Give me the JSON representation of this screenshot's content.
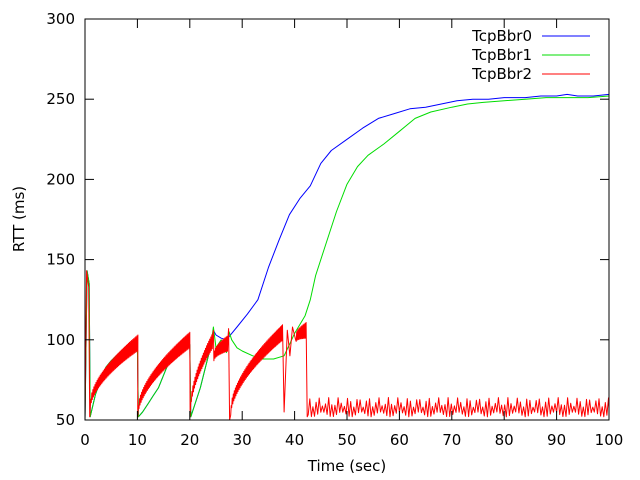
{
  "chart_data": {
    "type": "line",
    "xlabel": "Time (sec)",
    "ylabel": "RTT (ms)",
    "xlim": [
      0,
      100
    ],
    "ylim": [
      50,
      300
    ],
    "x_ticks": [
      0,
      10,
      20,
      30,
      40,
      50,
      60,
      70,
      80,
      90,
      100
    ],
    "y_ticks": [
      50,
      100,
      150,
      200,
      250,
      300
    ],
    "legend_position": "top-right",
    "grid": false,
    "series": [
      {
        "name": "TcpBbr0",
        "color": "#0000ff",
        "points": [
          [
            0,
            50
          ],
          [
            0.4,
            143
          ],
          [
            0.8,
            135
          ],
          [
            1.0,
            52
          ],
          [
            2,
            66
          ],
          [
            3,
            75
          ],
          [
            4,
            83
          ],
          [
            5,
            87
          ],
          [
            6,
            90
          ],
          [
            7,
            93
          ],
          [
            8,
            95
          ],
          [
            9,
            95
          ],
          [
            10,
            95
          ],
          [
            10.2,
            52
          ],
          [
            11,
            55
          ],
          [
            12,
            60
          ],
          [
            13,
            65
          ],
          [
            14,
            70
          ],
          [
            15,
            78
          ],
          [
            16,
            86
          ],
          [
            17,
            92
          ],
          [
            18,
            96
          ],
          [
            19,
            96
          ],
          [
            20,
            97
          ],
          [
            20.2,
            52
          ],
          [
            21,
            60
          ],
          [
            22,
            70
          ],
          [
            23,
            83
          ],
          [
            24,
            96
          ],
          [
            24.5,
            106
          ],
          [
            25,
            103
          ],
          [
            26,
            101
          ],
          [
            27,
            100
          ],
          [
            28,
            104
          ],
          [
            29,
            108
          ],
          [
            31,
            116
          ],
          [
            33,
            125
          ],
          [
            35,
            145
          ],
          [
            37,
            162
          ],
          [
            39,
            178
          ],
          [
            41,
            188
          ],
          [
            43,
            196
          ],
          [
            45,
            210
          ],
          [
            47,
            218
          ],
          [
            50,
            225
          ],
          [
            53,
            232
          ],
          [
            56,
            238
          ],
          [
            59,
            241
          ],
          [
            62,
            244
          ],
          [
            65,
            245
          ],
          [
            68,
            247
          ],
          [
            71,
            249
          ],
          [
            74,
            250
          ],
          [
            77,
            250
          ],
          [
            80,
            251
          ],
          [
            84,
            251
          ],
          [
            87,
            252
          ],
          [
            90,
            252
          ],
          [
            92,
            253
          ],
          [
            94,
            252
          ],
          [
            97,
            252
          ],
          [
            100,
            253
          ]
        ]
      },
      {
        "name": "TcpBbr1",
        "color": "#00dd00",
        "points": [
          [
            0,
            50
          ],
          [
            0.4,
            143
          ],
          [
            0.8,
            135
          ],
          [
            1.0,
            52
          ],
          [
            2,
            66
          ],
          [
            3,
            75
          ],
          [
            4,
            83
          ],
          [
            5,
            87
          ],
          [
            6,
            90
          ],
          [
            7,
            93
          ],
          [
            8,
            95
          ],
          [
            9,
            95
          ],
          [
            10,
            95
          ],
          [
            10.2,
            52
          ],
          [
            11,
            55
          ],
          [
            12,
            60
          ],
          [
            13,
            65
          ],
          [
            14,
            70
          ],
          [
            15,
            78
          ],
          [
            16,
            86
          ],
          [
            17,
            92
          ],
          [
            18,
            96
          ],
          [
            19,
            96
          ],
          [
            20,
            97
          ],
          [
            20.2,
            52
          ],
          [
            21,
            60
          ],
          [
            22,
            70
          ],
          [
            23,
            83
          ],
          [
            24,
            96
          ],
          [
            24.5,
            108
          ],
          [
            25,
            95
          ],
          [
            26,
            100
          ],
          [
            27,
            92
          ],
          [
            27.5,
            105
          ],
          [
            28,
            100
          ],
          [
            29,
            95
          ],
          [
            30,
            93
          ],
          [
            32,
            90
          ],
          [
            34,
            88
          ],
          [
            36,
            88
          ],
          [
            38,
            90
          ],
          [
            39,
            97
          ],
          [
            40,
            104
          ],
          [
            42,
            115
          ],
          [
            43,
            125
          ],
          [
            44,
            140
          ],
          [
            46,
            160
          ],
          [
            48,
            180
          ],
          [
            50,
            197
          ],
          [
            52,
            208
          ],
          [
            54,
            215
          ],
          [
            57,
            222
          ],
          [
            60,
            230
          ],
          [
            63,
            238
          ],
          [
            66,
            242
          ],
          [
            70,
            245
          ],
          [
            73,
            247
          ],
          [
            76,
            248
          ],
          [
            80,
            249
          ],
          [
            84,
            250
          ],
          [
            88,
            251
          ],
          [
            92,
            251
          ],
          [
            96,
            251
          ],
          [
            100,
            252
          ]
        ]
      },
      {
        "name": "TcpBbr2",
        "color": "#ff0000",
        "points": []
      }
    ]
  }
}
